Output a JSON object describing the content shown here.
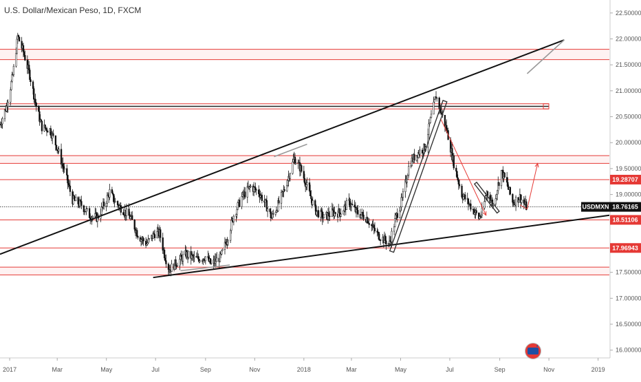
{
  "chart_title": "U.S. Dollar/Mexican Peso, 1D, FXCM",
  "symbol": "USDMXN",
  "chart_data": {
    "type": "candlestick",
    "title": "U.S. Dollar/Mexican Peso, 1D, FXCM",
    "x_ticks": [
      "2017",
      "Mar",
      "May",
      "Jul",
      "Sep",
      "Nov",
      "2018",
      "Mar",
      "May",
      "Jul",
      "Sep",
      "Nov",
      "2019"
    ],
    "y_ticks": [
      "22.50000",
      "22.00000",
      "21.50000",
      "21.00000",
      "20.50000",
      "20.00000",
      "19.50000",
      "19.00000",
      "18.50000",
      "18.00000",
      "17.50000",
      "17.00000",
      "16.50000",
      "16.00000"
    ],
    "ylim": [
      15.85,
      22.75
    ],
    "x_range": [
      "2016-12-20",
      "2019-01-15"
    ],
    "series": [
      {
        "ohlc_path": [
          [
            "2016-12-20",
            20.35
          ],
          [
            "2016-12-28",
            20.7
          ],
          [
            "2017-01-05",
            21.3
          ],
          [
            "2017-01-11",
            22.05
          ],
          [
            "2017-01-18",
            21.75
          ],
          [
            "2017-01-26",
            21.3
          ],
          [
            "2017-02-03",
            20.7
          ],
          [
            "2017-02-10",
            20.3
          ],
          [
            "2017-02-20",
            20.25
          ],
          [
            "2017-03-01",
            19.9
          ],
          [
            "2017-03-10",
            19.45
          ],
          [
            "2017-03-20",
            18.9
          ],
          [
            "2017-03-31",
            18.8
          ],
          [
            "2017-04-10",
            18.6
          ],
          [
            "2017-04-20",
            18.55
          ],
          [
            "2017-05-01",
            18.9
          ],
          [
            "2017-05-05",
            19.05
          ],
          [
            "2017-05-12",
            18.85
          ],
          [
            "2017-05-22",
            18.7
          ],
          [
            "2017-05-31",
            18.55
          ],
          [
            "2017-06-10",
            18.2
          ],
          [
            "2017-06-20",
            18.05
          ],
          [
            "2017-06-30",
            18.25
          ],
          [
            "2017-07-06",
            18.25
          ],
          [
            "2017-07-12",
            17.85
          ],
          [
            "2017-07-18",
            17.55
          ],
          [
            "2017-07-28",
            17.7
          ],
          [
            "2017-08-08",
            17.85
          ],
          [
            "2017-08-20",
            17.75
          ],
          [
            "2017-09-01",
            17.8
          ],
          [
            "2017-09-08",
            17.65
          ],
          [
            "2017-09-20",
            17.8
          ],
          [
            "2017-09-28",
            18.15
          ],
          [
            "2017-10-06",
            18.6
          ],
          [
            "2017-10-16",
            18.95
          ],
          [
            "2017-10-27",
            19.15
          ],
          [
            "2017-11-06",
            19.05
          ],
          [
            "2017-11-15",
            18.8
          ],
          [
            "2017-11-22",
            18.55
          ],
          [
            "2017-11-30",
            18.8
          ],
          [
            "2017-12-08",
            19.1
          ],
          [
            "2017-12-20",
            19.7
          ],
          [
            "2017-12-28",
            19.5
          ],
          [
            "2018-01-05",
            19.15
          ],
          [
            "2018-01-15",
            18.7
          ],
          [
            "2018-01-26",
            18.55
          ],
          [
            "2018-02-05",
            18.65
          ],
          [
            "2018-02-15",
            18.65
          ],
          [
            "2018-02-26",
            18.85
          ],
          [
            "2018-03-08",
            18.65
          ],
          [
            "2018-03-20",
            18.55
          ],
          [
            "2018-04-01",
            18.25
          ],
          [
            "2018-04-17",
            18.05
          ],
          [
            "2018-04-25",
            18.55
          ],
          [
            "2018-05-03",
            18.9
          ],
          [
            "2018-05-12",
            19.6
          ],
          [
            "2018-05-22",
            19.8
          ],
          [
            "2018-05-31",
            19.9
          ],
          [
            "2018-06-08",
            20.5
          ],
          [
            "2018-06-14",
            20.9
          ],
          [
            "2018-06-20",
            20.6
          ],
          [
            "2018-06-28",
            20.2
          ],
          [
            "2018-07-06",
            19.6
          ],
          [
            "2018-07-16",
            19.0
          ],
          [
            "2018-07-26",
            18.8
          ],
          [
            "2018-08-06",
            18.55
          ],
          [
            "2018-08-10",
            18.65
          ],
          [
            "2018-08-16",
            19.05
          ],
          [
            "2018-08-24",
            18.8
          ],
          [
            "2018-09-03",
            19.45
          ],
          [
            "2018-09-10",
            19.2
          ],
          [
            "2018-09-17",
            18.85
          ],
          [
            "2018-09-26",
            18.95
          ],
          [
            "2018-10-04",
            18.76
          ]
        ]
      }
    ],
    "horizontal_levels": [
      21.8,
      21.6,
      20.75,
      20.7,
      20.65,
      19.75,
      19.6,
      19.28707,
      18.51106,
      17.96943,
      17.6,
      17.45
    ],
    "price_badges": [
      {
        "label": "19.28707",
        "price": 19.28707,
        "color": "#e53935"
      },
      {
        "label": "USDMXN",
        "value": "18.76165",
        "price": 18.76165,
        "color": "#111111"
      },
      {
        "label": "18.51106",
        "price": 18.51106,
        "color": "#e53935"
      },
      {
        "label": "17.96943",
        "price": 17.96943,
        "color": "#e53935"
      }
    ],
    "trendlines": [
      {
        "from": [
          "2016-12-20",
          17.85
        ],
        "to": [
          "2018-11-20",
          21.98
        ]
      },
      {
        "from": [
          "2017-06-28",
          17.4
        ],
        "to": [
          "2019-01-15",
          18.6
        ]
      }
    ],
    "arrows": [
      {
        "from": [
          "2018-06-20",
          20.45
        ],
        "to": [
          "2018-08-15",
          18.6
        ]
      },
      {
        "from": [
          "2018-09-26",
          18.8
        ],
        "to": [
          "2018-10-18",
          19.6
        ]
      }
    ],
    "current_price": 18.76165
  }
}
